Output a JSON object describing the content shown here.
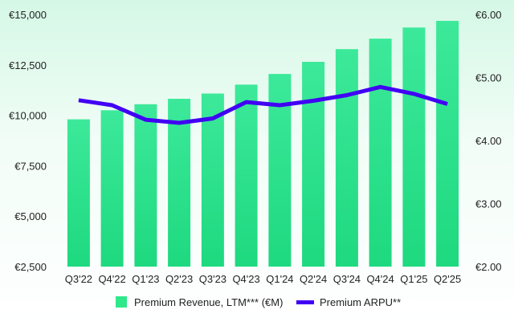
{
  "chart_data": {
    "type": "bar",
    "categories": [
      "Q3'22",
      "Q4'22",
      "Q1'23",
      "Q2'23",
      "Q3'23",
      "Q4'23",
      "Q1'24",
      "Q2'24",
      "Q3'24",
      "Q4'24",
      "Q1'25",
      "Q2'25"
    ],
    "series": [
      {
        "name": "Premium Revenue, LTM*** (€M)",
        "type": "bar",
        "axis": "left",
        "color": "#2ee88a",
        "values": [
          9800,
          10250,
          10550,
          10820,
          11080,
          11520,
          12050,
          12650,
          13280,
          13800,
          14350,
          14680
        ]
      },
      {
        "name": "Premium ARPU**",
        "type": "line",
        "axis": "right",
        "color": "#4100f4",
        "values": [
          4.64,
          4.56,
          4.33,
          4.28,
          4.35,
          4.61,
          4.56,
          4.63,
          4.72,
          4.85,
          4.74,
          4.58
        ]
      }
    ],
    "y_left": {
      "ylim": [
        2500,
        15000
      ],
      "ticks": [
        2500,
        5000,
        7500,
        10000,
        12500,
        15000
      ],
      "tick_labels": [
        "€2,500",
        "€5,000",
        "€7,500",
        "€10,000",
        "€12,500",
        "€15,000"
      ]
    },
    "y_right": {
      "ylim": [
        2.0,
        6.0
      ],
      "ticks": [
        2,
        3,
        4,
        5,
        6
      ],
      "tick_labels": [
        "€2.00",
        "€3.00",
        "€4.00",
        "€5.00",
        "€6.00"
      ]
    },
    "grid": false,
    "legend_position": "bottom-center"
  }
}
